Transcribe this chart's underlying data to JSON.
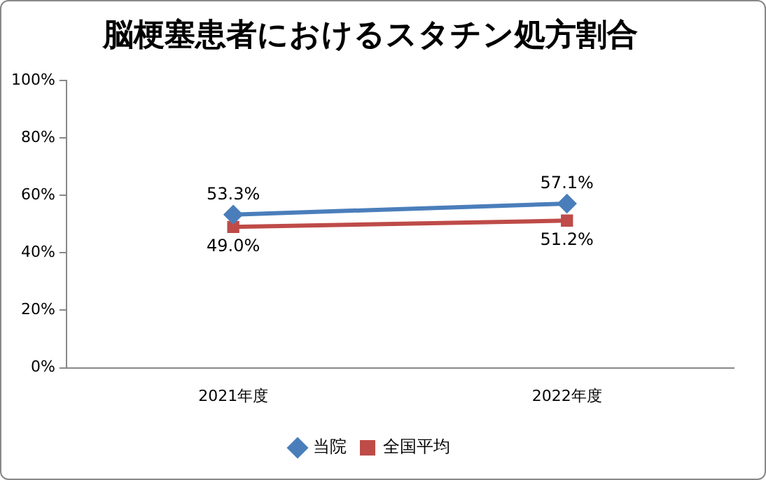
{
  "chart_data": {
    "type": "line",
    "title": "脳梗塞患者におけるスタチン処方割合",
    "categories": [
      "2021年度",
      "2022年度"
    ],
    "series": [
      {
        "name": "当院",
        "color": "#4a7ebb",
        "values": [
          53.3,
          57.1
        ],
        "value_labels": [
          "53.3%",
          "57.1%"
        ],
        "marker": "diamond"
      },
      {
        "name": "全国平均",
        "color": "#be4b48",
        "values": [
          49.0,
          51.2
        ],
        "value_labels": [
          "49.0%",
          "51.2%"
        ],
        "marker": "square"
      }
    ],
    "ylim": [
      0,
      100
    ],
    "yticks": [
      {
        "value": 0,
        "label": "0%"
      },
      {
        "value": 20,
        "label": "20%"
      },
      {
        "value": 40,
        "label": "40%"
      },
      {
        "value": 60,
        "label": "60%"
      },
      {
        "value": 80,
        "label": "80%"
      },
      {
        "value": 100,
        "label": "100%"
      }
    ],
    "legend": "bottom",
    "line_style": "solid"
  }
}
